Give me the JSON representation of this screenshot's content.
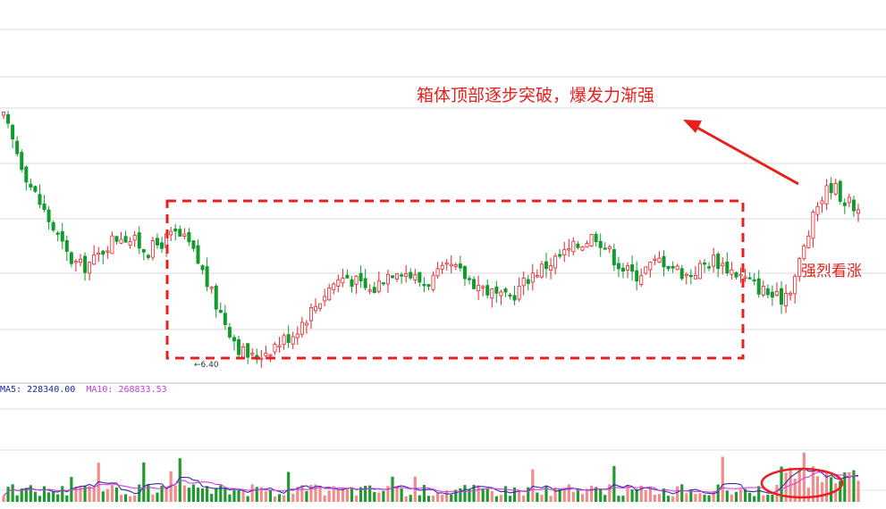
{
  "chart_data": {
    "type": "candlestick",
    "colors": {
      "up": "#e8202a",
      "down": "#119b2d",
      "up_volume": "#f08c8c",
      "down_volume": "#1f9a2e",
      "ma_volume_1": "#3b2aa8",
      "ma_volume_2": "#d63de0",
      "annotation": "#e8201c"
    },
    "annotations": {
      "top_text": "箱体顶部逐步突破，爆发力渐强",
      "right_text": "强烈看涨",
      "low_value_label": "←6.40"
    },
    "volume_legend": {
      "ma5_text": "MA5: 228340.00",
      "ma10_text": "MA10: 268833.53",
      "ma5_color": "#1a2aa0",
      "ma10_color": "#c040d0"
    },
    "box_pattern": {
      "top_price_level": "high",
      "bottom_price_level": "low",
      "style": "dashed-rectangle",
      "color": "#e8201c"
    },
    "breakout": {
      "arrow_direction": "up-left",
      "volume_highlight": "ellipse"
    },
    "grid": true,
    "y_low_label": 6.4,
    "price_trend": [
      9.4,
      9.0,
      8.6,
      8.3,
      8.0,
      7.7,
      7.6,
      7.7,
      7.9,
      8.0,
      7.9,
      7.8,
      7.9,
      8.0,
      7.9,
      7.6,
      7.2,
      6.9,
      6.6,
      6.5,
      6.6,
      6.7,
      6.8,
      7.0,
      7.2,
      7.4,
      7.5,
      7.4,
      7.3,
      7.5,
      7.6,
      7.5,
      7.4,
      7.5,
      7.6,
      7.5,
      7.4,
      7.3,
      7.2,
      7.3,
      7.5,
      7.6,
      7.7,
      7.8,
      7.9,
      8.0,
      7.8,
      7.6,
      7.5,
      7.6,
      7.7,
      7.6,
      7.5,
      7.6,
      7.7,
      7.6,
      7.5,
      7.4,
      7.3,
      7.2,
      7.4,
      7.9,
      8.4,
      8.6,
      8.4,
      8.3
    ]
  }
}
